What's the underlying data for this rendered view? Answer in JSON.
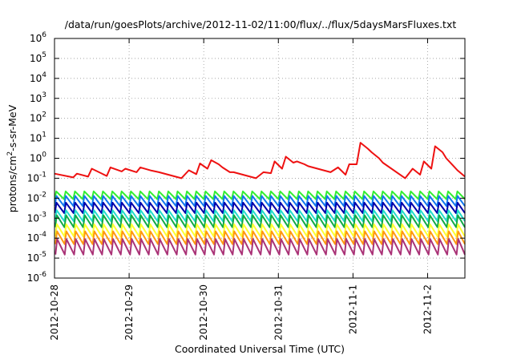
{
  "chart_data": {
    "type": "line",
    "title": "/data/run/goesPlots/archive/2012-11-02/11:00/flux/../flux/5daysMarsFluxes.txt",
    "xlabel": "Coordinated Universal Time (UTC)",
    "ylabel": "protons/cm²-s-sr-MeV",
    "ylabel_parts": {
      "pre": "protons/cm",
      "sup": "2",
      "post": "-s-sr-MeV"
    },
    "yscale": "log",
    "ylim": [
      1e-06,
      1000000.0
    ],
    "xlim": [
      "2012-10-28T00:00",
      "2012-11-02T12:00"
    ],
    "y_ticks": [
      {
        "value": 1e-06,
        "label": "10",
        "sup": "-6"
      },
      {
        "value": 1e-05,
        "label": "10",
        "sup": "-5"
      },
      {
        "value": 0.0001,
        "label": "10",
        "sup": "-4"
      },
      {
        "value": 0.001,
        "label": "10",
        "sup": "-3"
      },
      {
        "value": 0.01,
        "label": "10",
        "sup": "-2"
      },
      {
        "value": 0.1,
        "label": "10",
        "sup": "-1"
      },
      {
        "value": 1,
        "label": "10",
        "sup": "0"
      },
      {
        "value": 10,
        "label": "10",
        "sup": "1"
      },
      {
        "value": 100,
        "label": "10",
        "sup": "2"
      },
      {
        "value": 1000,
        "label": "10",
        "sup": "3"
      },
      {
        "value": 10000,
        "label": "10",
        "sup": "4"
      },
      {
        "value": 100000,
        "label": "10",
        "sup": "5"
      },
      {
        "value": 1000000,
        "label": "10",
        "sup": "6"
      }
    ],
    "x_ticks": [
      {
        "value": "2012-10-28T00:00",
        "label": "2012-10-28"
      },
      {
        "value": "2012-10-29T00:00",
        "label": "2012-10-29"
      },
      {
        "value": "2012-10-30T00:00",
        "label": "2012-10-30"
      },
      {
        "value": "2012-10-31T00:00",
        "label": "2012-10-31"
      },
      {
        "value": "2012-11-01T00:00",
        "label": "2012-11-1"
      },
      {
        "value": "2012-11-02T00:00",
        "label": "2012-11-2"
      }
    ],
    "grid": true,
    "series": [
      {
        "color": "#ee1111",
        "x": [
          "2012-10-28T00:00",
          "2012-10-28T06:00",
          "2012-10-28T07:12",
          "2012-10-28T10:48",
          "2012-10-28T12:00",
          "2012-10-28T16:48",
          "2012-10-28T18:00",
          "2012-10-28T21:36",
          "2012-10-28T22:48",
          "2012-10-29T02:24",
          "2012-10-29T03:36",
          "2012-10-29T07:12",
          "2012-10-29T09:36",
          "2012-10-29T16:48",
          "2012-10-29T19:12",
          "2012-10-29T21:36",
          "2012-10-29T22:48",
          "2012-10-30T01:12",
          "2012-10-30T02:24",
          "2012-10-30T04:48",
          "2012-10-30T06:00",
          "2012-10-30T08:24",
          "2012-10-30T09:36",
          "2012-10-30T16:48",
          "2012-10-30T19:12",
          "2012-10-30T21:36",
          "2012-10-30T22:48",
          "2012-10-31T01:12",
          "2012-10-31T02:24",
          "2012-10-31T04:48",
          "2012-10-31T06:00",
          "2012-10-31T08:24",
          "2012-10-31T09:36",
          "2012-10-31T16:48",
          "2012-10-31T19:12",
          "2012-10-31T21:36",
          "2012-10-31T22:48",
          "2012-11-01T01:12",
          "2012-11-01T02:24",
          "2012-11-01T04:48",
          "2012-11-01T06:00",
          "2012-11-01T08:24",
          "2012-11-01T09:36",
          "2012-11-01T16:48",
          "2012-11-01T19:12",
          "2012-11-01T21:36",
          "2012-11-01T22:48",
          "2012-11-02T01:12",
          "2012-11-02T02:24",
          "2012-11-02T04:48",
          "2012-11-02T06:00",
          "2012-11-02T08:24",
          "2012-11-02T09:36",
          "2012-11-02T12:00"
        ],
        "y": [
          0.17,
          0.11,
          0.17,
          0.12,
          0.3,
          0.13,
          0.35,
          0.22,
          0.3,
          0.2,
          0.35,
          0.24,
          0.2,
          0.1,
          0.25,
          0.16,
          0.55,
          0.3,
          0.8,
          0.5,
          0.35,
          0.2,
          0.2,
          0.1,
          0.2,
          0.18,
          0.7,
          0.3,
          1.2,
          0.6,
          0.7,
          0.5,
          0.4,
          0.2,
          0.35,
          0.15,
          0.5,
          0.5,
          6.0,
          3.0,
          2.0,
          1.0,
          0.6,
          0.1,
          0.3,
          0.15,
          0.7,
          0.3,
          4.0,
          2.0,
          1.0,
          0.4,
          0.25,
          0.12
        ]
      },
      {
        "color": "#33ee33",
        "pattern": "sawtooth",
        "low": 0.009,
        "high": 0.022
      },
      {
        "color": "#1177ee",
        "pattern": "sawtooth",
        "low": 0.004,
        "high": 0.013
      },
      {
        "color": "#0000aa",
        "pattern": "sawtooth",
        "low": 0.0018,
        "high": 0.006
      },
      {
        "color": "#22ddcc",
        "pattern": "sawtooth",
        "low": 0.0007,
        "high": 0.0025
      },
      {
        "color": "#11aa44",
        "pattern": "sawtooth",
        "low": 0.00035,
        "high": 0.0014
      },
      {
        "color": "#ffff33",
        "pattern": "sawtooth",
        "low": 0.00012,
        "high": 0.0005
      },
      {
        "color": "#ff9911",
        "pattern": "sawtooth",
        "low": 5e-05,
        "high": 0.00022
      },
      {
        "color": "#aa3377",
        "pattern": "sawtooth",
        "low": 1.5e-05,
        "high": 9e-05
      }
    ]
  }
}
